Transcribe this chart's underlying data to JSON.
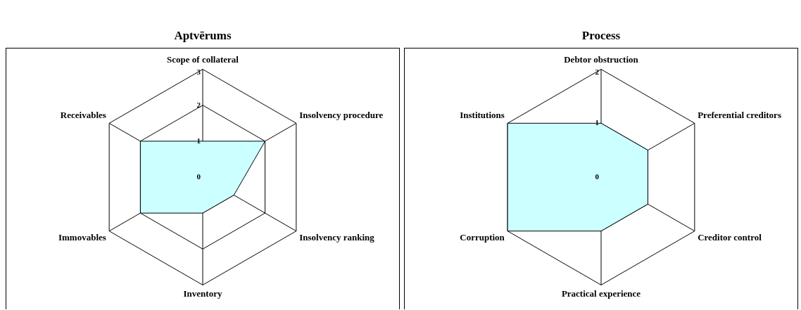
{
  "chart_data": [
    {
      "type": "radar",
      "title": "Aptvērums",
      "categories": [
        "Scope of collateral",
        "Insolvency procedure",
        "Insolvency ranking",
        "Inventory",
        "Immovables",
        "Receivables"
      ],
      "series": [
        {
          "color": "#ccffff",
          "values": [
            1,
            2,
            1,
            1,
            2,
            2
          ]
        }
      ],
      "ylim": [
        0,
        3
      ],
      "yticks": [
        0,
        1,
        2,
        3
      ],
      "grid": true,
      "legend": false,
      "marker": "none"
    },
    {
      "type": "radar",
      "title": "Process",
      "categories": [
        "Debtor obstruction",
        "Preferential creditors",
        "Creditor control",
        "Practical experience",
        "Corruption",
        "Institutions"
      ],
      "series": [
        {
          "color": "#ccffff",
          "values": [
            1,
            1,
            1,
            1,
            2,
            2
          ]
        }
      ],
      "ylim": [
        0,
        2
      ],
      "yticks": [
        0,
        1,
        2
      ],
      "grid": true,
      "legend": false,
      "marker": "none"
    }
  ]
}
